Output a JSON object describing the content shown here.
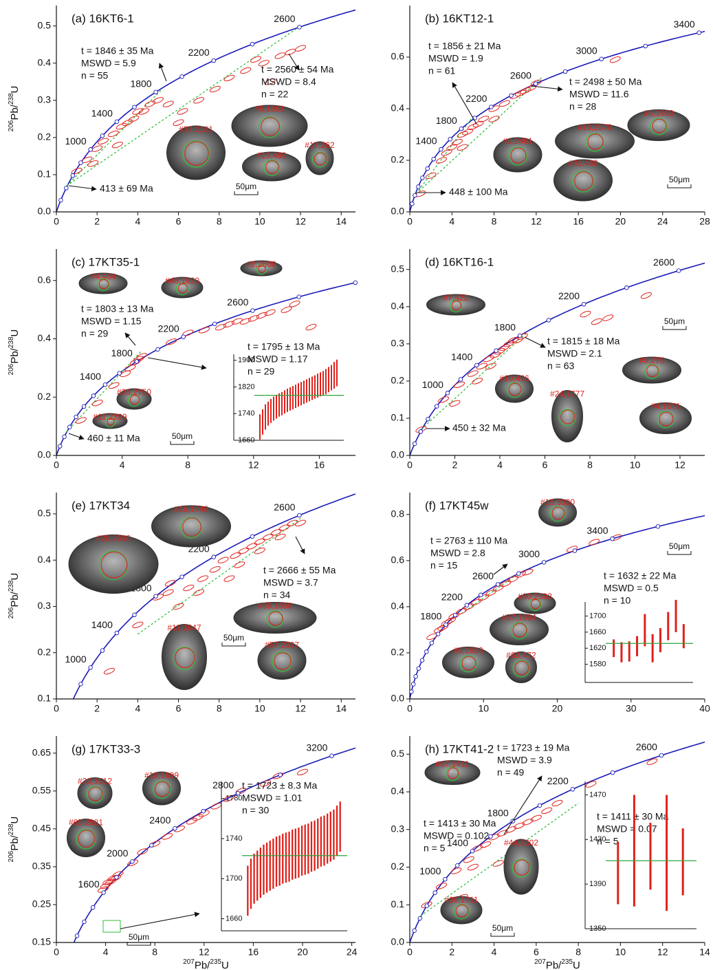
{
  "chart_data": [
    {
      "type": "concordia",
      "panel": "(a) 16KT6-1",
      "xlim": [
        0,
        14.7
      ],
      "xticks": [
        0,
        2,
        4,
        6,
        8,
        10,
        12,
        14
      ],
      "ylim": [
        0,
        0.555
      ],
      "yticks": [
        {
          "value": 0,
          "label": "0.0"
        },
        0.1,
        0.2,
        0.3,
        0.4,
        0.5
      ],
      "ylabel": [
        "206",
        "Pb/",
        "238",
        "U"
      ],
      "age_labels": [
        1000,
        1400,
        1800,
        2200,
        2600
      ],
      "ellipses": {
        "x": [
          1.0,
          1.5,
          2.0,
          2.3,
          2.8,
          3.2,
          3.5,
          3.8,
          4.0,
          4.3,
          4.6,
          5.0,
          3.0,
          5.5,
          6.2,
          7.0,
          7.8,
          8.5,
          9.3,
          9.8,
          10.2,
          11.0,
          11.5,
          10.5,
          12.0,
          6.0,
          1.8
        ],
        "y": [
          0.11,
          0.14,
          0.17,
          0.19,
          0.21,
          0.23,
          0.24,
          0.25,
          0.27,
          0.27,
          0.29,
          0.3,
          0.18,
          0.29,
          0.27,
          0.3,
          0.33,
          0.36,
          0.38,
          0.41,
          0.4,
          0.42,
          0.43,
          0.35,
          0.44,
          0.24,
          0.13
        ]
      },
      "discordia": [
        {
          "x": [
            0.5,
            12
          ],
          "y": [
            0.07,
            0.5
          ]
        },
        {
          "x": [
            0.5,
            5.2
          ],
          "y": [
            0.07,
            0.33
          ]
        }
      ],
      "annotations": [
        [
          "t = 1846 ± 35 Ma",
          "MSWD = 5.9",
          "n = 55"
        ],
        [
          "t = 2560 ± 54 Ma",
          "MSWD = 8.4",
          "n = 22"
        ],
        [
          "413 ± 69 Ma"
        ]
      ],
      "grains": [
        "#6,1861",
        "#13,489",
        "#17,262",
        "#37,2181"
      ],
      "scale_bar": "50μm"
    },
    {
      "type": "concordia",
      "panel": "(b) 16KT12-1",
      "xlim": [
        0,
        28
      ],
      "xticks": [
        0,
        4,
        8,
        12,
        16,
        20,
        24,
        28
      ],
      "ylim": [
        0,
        0.8
      ],
      "yticks": [
        {
          "value": 0,
          "label": "0.0"
        },
        0.2,
        0.4,
        0.6
      ],
      "age_labels": [
        1400,
        1800,
        2200,
        2600,
        3000,
        3400
      ],
      "ellipses": {
        "x": [
          1,
          2,
          3,
          3.5,
          4,
          4.5,
          5,
          5.5,
          6,
          7,
          8,
          9,
          10,
          10.5,
          11,
          11.5,
          12,
          6.5,
          5,
          8,
          19.5
        ],
        "y": [
          0.07,
          0.14,
          0.2,
          0.23,
          0.25,
          0.27,
          0.3,
          0.31,
          0.33,
          0.36,
          0.4,
          0.42,
          0.45,
          0.46,
          0.47,
          0.48,
          0.5,
          0.34,
          0.25,
          0.36,
          0.59
        ]
      },
      "discordia": [
        {
          "x": [
            0.6,
            12.5
          ],
          "y": [
            0.07,
            0.52
          ]
        },
        {
          "x": [
            0.6,
            6
          ],
          "y": [
            0.07,
            0.37
          ]
        }
      ],
      "annotations": [
        [
          "t = 1856 ± 21 Ma",
          "MSWD = 1.9",
          "n = 61"
        ],
        [
          "t = 2498 ± 50 Ma",
          "MSWD = 11.6",
          "n = 28"
        ],
        [
          "448 ± 100 Ma"
        ]
      ],
      "grains": [
        "#15,2570",
        "#5,1863",
        "#1,2461",
        "#31,460"
      ],
      "scale_bar": "50μm"
    },
    {
      "type": "concordia",
      "panel": "(c) 17KT35-1",
      "xlim": [
        0,
        18.2
      ],
      "xticks": [
        0,
        4,
        8,
        12,
        16
      ],
      "ylim": [
        0,
        0.708
      ],
      "yticks": [
        {
          "value": 0,
          "label": "0.0"
        },
        0.2,
        0.4,
        0.6
      ],
      "ylabel": [
        "206",
        "Pb/",
        "238",
        "U"
      ],
      "age_labels": [
        1400,
        1800,
        2200,
        2600
      ],
      "ellipses": {
        "x": [
          1.5,
          2.5,
          3.5,
          4.2,
          4.5,
          4.8,
          5.0,
          5.2,
          8,
          9,
          10,
          10.5,
          11,
          11.5,
          12,
          12.5,
          13,
          14,
          14.5,
          7,
          15.5
        ],
        "y": [
          0.12,
          0.18,
          0.24,
          0.28,
          0.3,
          0.32,
          0.33,
          0.34,
          0.42,
          0.43,
          0.44,
          0.45,
          0.46,
          0.46,
          0.47,
          0.48,
          0.49,
          0.5,
          0.52,
          0.39,
          0.44
        ]
      },
      "discordia": [
        {
          "x": [
            0.6,
            5.2
          ],
          "y": [
            0.08,
            0.36
          ]
        }
      ],
      "annotations": [
        [
          "t = 1803 ± 13 Ma",
          "MSWD = 1.15",
          "n = 29"
        ],
        [
          "460 ± 11 Ma"
        ],
        [
          "t = 1795 ± 13 Ma",
          "MSWD = 1.17",
          "n = 29"
        ]
      ],
      "grains": [
        "#4,464",
        "#48,1820",
        "#2,2608",
        "#33,2750",
        "#11,2299"
      ],
      "scale_bar": "50μm",
      "inset": {
        "type": "weighted-mean",
        "ylim": [
          1660,
          1918
        ],
        "yticks": [
          1660,
          1740,
          1820,
          1900
        ],
        "mean": 1795,
        "values": [
          1700,
          1715,
          1730,
          1740,
          1748,
          1755,
          1760,
          1766,
          1770,
          1775,
          1780,
          1784,
          1788,
          1792,
          1796,
          1800,
          1804,
          1808,
          1812,
          1816,
          1820,
          1824,
          1828,
          1832,
          1836,
          1842,
          1848,
          1855,
          1862
        ],
        "errors": [
          38,
          38,
          38,
          36,
          36,
          36,
          35,
          35,
          35,
          35,
          35,
          35,
          35,
          35,
          35,
          35,
          35,
          35,
          35,
          35,
          35,
          36,
          36,
          36,
          38,
          38,
          38,
          40,
          40
        ]
      }
    },
    {
      "type": "concordia",
      "panel": "(d) 16KT16-1",
      "xlim": [
        0,
        13.1
      ],
      "xticks": [
        0,
        2,
        4,
        6,
        8,
        10,
        12
      ],
      "ylim": [
        0,
        0.555
      ],
      "yticks": [
        {
          "value": 0,
          "label": "0.0"
        },
        0.1,
        0.2,
        0.3,
        0.4,
        0.5
      ],
      "age_labels": [
        1000,
        1400,
        1800,
        2200,
        2600
      ],
      "ellipses": {
        "x": [
          0.5,
          1.5,
          2.2,
          2.8,
          3.2,
          3.5,
          3.8,
          4.0,
          4.2,
          4.4,
          4.6,
          4.8,
          5.0,
          3.0,
          2.0,
          3.6,
          7.8,
          8.3,
          8.8,
          10.5
        ],
        "y": [
          0.07,
          0.15,
          0.19,
          0.22,
          0.24,
          0.26,
          0.27,
          0.28,
          0.29,
          0.3,
          0.31,
          0.31,
          0.32,
          0.2,
          0.14,
          0.24,
          0.38,
          0.36,
          0.37,
          0.43
        ]
      },
      "discordia": [
        {
          "x": [
            0.5,
            5.2
          ],
          "y": [
            0.07,
            0.33
          ]
        }
      ],
      "annotations": [
        [
          "t = 1815 ± 18 Ma",
          "MSWD = 2.1",
          "n = 63"
        ],
        [
          "450 ± 32 Ma"
        ]
      ],
      "grains": [
        "#7,422",
        "#8,275",
        "#10,436",
        "#24,1777",
        "#4,1671"
      ],
      "scale_bar": "50μm"
    },
    {
      "type": "concordia",
      "panel": "(e) 17KT34",
      "xlim": [
        0,
        14.7
      ],
      "xticks": [
        0,
        2,
        4,
        6,
        8,
        10,
        12,
        14
      ],
      "ylim": [
        0.1,
        0.546
      ],
      "yticks": [
        0.1,
        0.2,
        0.3,
        0.4,
        0.5
      ],
      "ylabel": [
        "206",
        "Pb/",
        "238",
        "U"
      ],
      "age_labels": [
        1000,
        1400,
        1800,
        2200,
        2600
      ],
      "ellipses": {
        "x": [
          2.6,
          4,
          5,
          5.5,
          6.5,
          7.2,
          7.8,
          8.2,
          8.8,
          9.2,
          9.6,
          10,
          10.4,
          10.8,
          11.2,
          11.6,
          12,
          6,
          7,
          8.5,
          9,
          10,
          11,
          5.6
        ],
        "y": [
          0.16,
          0.26,
          0.32,
          0.33,
          0.34,
          0.36,
          0.38,
          0.4,
          0.41,
          0.42,
          0.43,
          0.44,
          0.45,
          0.46,
          0.47,
          0.48,
          0.48,
          0.3,
          0.33,
          0.36,
          0.39,
          0.42,
          0.45,
          0.35
        ]
      },
      "discordia": [
        {
          "x": [
            4,
            12
          ],
          "y": [
            0.24,
            0.49
          ]
        }
      ],
      "annotations": [
        [
          "t = 2666 ± 55 Ma",
          "MSWD = 3.7",
          "n = 34"
        ]
      ],
      "grains": [
        "#16,1748",
        "#20,2030",
        "#35,1656",
        "#11,2647",
        "#57,2337"
      ],
      "scale_bar": "50μm"
    },
    {
      "type": "concordia",
      "panel": "(f) 17KT45w",
      "xlim": [
        0,
        40
      ],
      "xticks": [
        0,
        10,
        20,
        30,
        40
      ],
      "ylim": [
        0,
        0.895
      ],
      "yticks": [
        {
          "value": 0,
          "label": "0.0"
        },
        0.2,
        0.4,
        0.6,
        0.8
      ],
      "age_labels": [
        1800,
        2200,
        2600,
        3000,
        3400
      ],
      "ellipses": {
        "x": [
          3,
          4,
          5,
          6,
          7,
          8,
          9,
          10,
          11,
          12,
          13,
          14,
          15,
          16,
          22,
          25,
          28,
          5.5,
          4.5
        ],
        "y": [
          0.27,
          0.3,
          0.33,
          0.36,
          0.38,
          0.4,
          0.42,
          0.44,
          0.46,
          0.48,
          0.5,
          0.52,
          0.54,
          0.55,
          0.65,
          0.68,
          0.7,
          0.34,
          0.31
        ]
      },
      "discordia": [
        {
          "x": [
            7,
            15
          ],
          "y": [
            0.37,
            0.55
          ]
        }
      ],
      "annotations": [
        [
          "t = 2763 ± 110 Ma",
          "MSWD = 2.8",
          "n = 15"
        ],
        [
          "t = 1632 ± 22 Ma",
          "MSWD = 0.5",
          "n = 10"
        ]
      ],
      "grains": [
        "#15,3330",
        "#60,2593",
        "#57,1834",
        "#9,1633",
        "#63,472"
      ],
      "scale_bar": "50μm",
      "inset": {
        "type": "weighted-mean",
        "ylim": [
          1535,
          1735
        ],
        "yticks": [
          1580,
          1620,
          1660,
          1700
        ],
        "mean": 1632,
        "values": [
          1620,
          1610,
          1612,
          1625,
          1665,
          1620,
          1640,
          1675,
          1700,
          1650
        ],
        "errors": [
          22,
          25,
          25,
          25,
          40,
          35,
          30,
          35,
          40,
          30
        ]
      }
    },
    {
      "type": "concordia",
      "panel": "(g) 17KT33-3",
      "xlim": [
        0,
        24.3
      ],
      "xticks": [
        0,
        4,
        8,
        12,
        16,
        20,
        24
      ],
      "ylim": [
        0.15,
        0.695
      ],
      "yticks": [
        0.15,
        0.25,
        0.35,
        0.45,
        0.55,
        0.65
      ],
      "ylabel": [
        "206",
        "Pb/",
        "238",
        "U"
      ],
      "xlabel": [
        "207",
        "Pb/",
        "235",
        "U"
      ],
      "age_labels": [
        1600,
        2000,
        2400,
        2800,
        3200
      ],
      "ellipses": {
        "x": [
          3.8,
          4.0,
          4.2,
          4.4,
          4.6,
          5.0,
          6.2,
          7.0,
          8.0,
          9.0,
          10,
          11,
          11.5,
          12,
          13,
          14,
          15,
          17,
          18,
          20,
          4.8
        ],
        "y": [
          0.29,
          0.3,
          0.31,
          0.31,
          0.32,
          0.33,
          0.36,
          0.39,
          0.41,
          0.43,
          0.45,
          0.47,
          0.48,
          0.49,
          0.51,
          0.53,
          0.55,
          0.57,
          0.59,
          0.6,
          0.32
        ]
      },
      "annotations": [
        [
          "t = 1723 ± 8.3 Ma",
          "MSWD = 1.01",
          "n = 30"
        ]
      ],
      "grains": [
        "#20,1512",
        "#18,1699",
        "#65,2981"
      ],
      "scale_bar": "50μm",
      "inset": {
        "type": "weighted-mean",
        "ylim": [
          1648,
          1797
        ],
        "yticks": [
          1660,
          1700,
          1740,
          1780
        ],
        "mean": 1723,
        "values": [
          1688,
          1695,
          1700,
          1703,
          1706,
          1709,
          1711,
          1713,
          1715,
          1717,
          1718,
          1720,
          1721,
          1722,
          1724,
          1725,
          1726,
          1728,
          1729,
          1730,
          1732,
          1733,
          1735,
          1737,
          1738,
          1740,
          1742,
          1744,
          1748,
          1752
        ],
        "errors": [
          25,
          25,
          25,
          25,
          25,
          25,
          25,
          25,
          25,
          25,
          25,
          25,
          25,
          25,
          25,
          25,
          25,
          25,
          25,
          25,
          25,
          25,
          25,
          25,
          25,
          25,
          25,
          25,
          25,
          25
        ]
      }
    },
    {
      "type": "concordia",
      "panel": "(h) 17KT41-2",
      "xlim": [
        0,
        14
      ],
      "xticks": [
        0,
        2,
        4,
        6,
        8,
        10,
        12,
        14
      ],
      "ylim": [
        0,
        0.548
      ],
      "yticks": [
        {
          "value": 0,
          "label": "0.0"
        },
        0.1,
        0.2,
        0.3,
        0.4,
        0.5
      ],
      "xlabel": [
        "207",
        "Pb/",
        "235",
        "U"
      ],
      "age_labels": [
        1000,
        1400,
        1800,
        2200,
        2600
      ],
      "ellipses": {
        "x": [
          0.8,
          1.5,
          2.2,
          2.8,
          3.2,
          3.6,
          4.0,
          4.4,
          4.8,
          5.2,
          5.6,
          6.0,
          6.5,
          7.0,
          8.6,
          11.5,
          2.5,
          3.0,
          4.2
        ],
        "y": [
          0.1,
          0.15,
          0.19,
          0.22,
          0.25,
          0.26,
          0.28,
          0.29,
          0.3,
          0.31,
          0.32,
          0.33,
          0.35,
          0.37,
          0.42,
          0.48,
          0.12,
          0.2,
          0.21
        ]
      },
      "discordia": [
        {
          "x": [
            0.5,
            8
          ],
          "y": [
            0.07,
            0.37
          ]
        }
      ],
      "annotations": [
        [
          "t = 1723 ± 19 Ma",
          "MSWD = 3.9",
          "n = 49"
        ],
        [
          "t = 1413 ± 30 Ma",
          "MSWD = 0.102",
          "n = 5"
        ],
        [
          "t = 1411 ± 30 Ma",
          "MSWD = 0.07",
          "n = 5"
        ]
      ],
      "grains": [
        "#67,1411",
        "#44,2302",
        "#30,1711"
      ],
      "scale_bar": "50μm",
      "inset": {
        "type": "weighted-mean",
        "ylim": [
          1350,
          1482
        ],
        "yticks": [
          1350,
          1390,
          1430,
          1470
        ],
        "mean": 1411,
        "values": [
          1400,
          1420,
          1415,
          1418,
          1410
        ],
        "errors": [
          28,
          50,
          30,
          52,
          30
        ]
      }
    }
  ]
}
